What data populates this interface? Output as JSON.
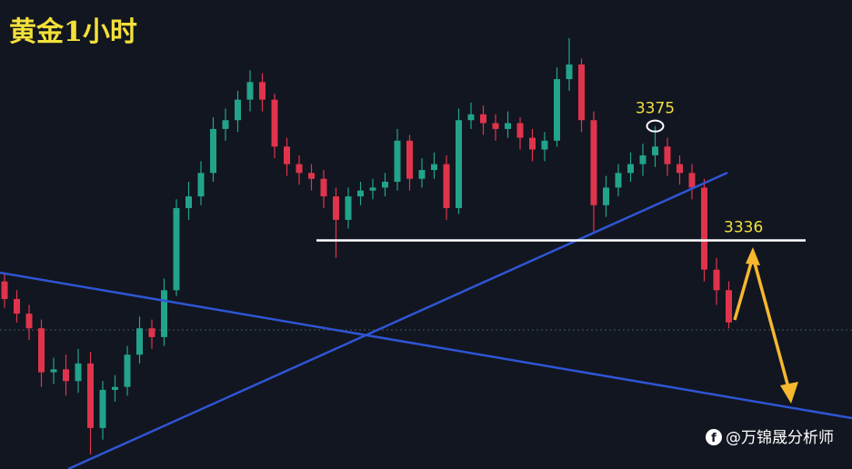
{
  "chart_data": {
    "type": "candlestick",
    "title": "黄金1小时",
    "watermark": "@万锦晟分析师",
    "up_color": "#22a38b",
    "down_color": "#e0344c",
    "ylim": [
      3258,
      3418
    ],
    "marked_high": 3375,
    "support": 3336,
    "open": [
      3322,
      3316,
      3311,
      3306,
      3291,
      3292,
      3288,
      3294,
      3272,
      3285,
      3286,
      3297,
      3306,
      3303,
      3319,
      3347,
      3351,
      3359,
      3374,
      3377,
      3384,
      3390,
      3384,
      3368,
      3362,
      3359,
      3357,
      3351,
      3343,
      3351,
      3353,
      3354,
      3356,
      3370,
      3357,
      3360,
      3362,
      3347,
      3377,
      3379,
      3376,
      3374,
      3376,
      3371,
      3367,
      3370,
      3391,
      3396,
      3377,
      3348,
      3354,
      3359,
      3362,
      3365,
      3368,
      3362,
      3359,
      3354,
      3326,
      3319
    ],
    "high": [
      3325,
      3319,
      3314,
      3309,
      3296,
      3297,
      3299,
      3298,
      3288,
      3290,
      3300,
      3310,
      3309,
      3323,
      3350,
      3356,
      3363,
      3378,
      3381,
      3387,
      3394,
      3393,
      3386,
      3371,
      3365,
      3362,
      3360,
      3354,
      3354,
      3356,
      3357,
      3359,
      3374,
      3372,
      3364,
      3366,
      3365,
      3381,
      3383,
      3382,
      3379,
      3380,
      3378,
      3374,
      3373,
      3395,
      3405,
      3398,
      3380,
      3358,
      3362,
      3366,
      3369,
      3375,
      3371,
      3365,
      3362,
      3357,
      3330,
      3322
    ],
    "low": [
      3313,
      3308,
      3302,
      3286,
      3287,
      3283,
      3284,
      3263,
      3268,
      3281,
      3283,
      3294,
      3299,
      3300,
      3317,
      3343,
      3348,
      3356,
      3370,
      3373,
      3380,
      3380,
      3364,
      3358,
      3355,
      3353,
      3347,
      3330,
      3340,
      3348,
      3350,
      3351,
      3353,
      3353,
      3354,
      3357,
      3343,
      3345,
      3374,
      3372,
      3370,
      3371,
      3367,
      3363,
      3363,
      3368,
      3387,
      3373,
      3339,
      3344,
      3351,
      3356,
      3358,
      3361,
      3358,
      3355,
      3350,
      3322,
      3314,
      3306
    ],
    "close": [
      3316,
      3311,
      3306,
      3291,
      3292,
      3288,
      3294,
      3272,
      3285,
      3286,
      3297,
      3306,
      3303,
      3319,
      3347,
      3351,
      3359,
      3374,
      3377,
      3384,
      3390,
      3384,
      3368,
      3362,
      3359,
      3357,
      3351,
      3343,
      3351,
      3353,
      3354,
      3356,
      3370,
      3357,
      3360,
      3362,
      3347,
      3377,
      3379,
      3376,
      3374,
      3376,
      3371,
      3367,
      3370,
      3391,
      3396,
      3377,
      3348,
      3354,
      3359,
      3362,
      3365,
      3368,
      3362,
      3359,
      3354,
      3326,
      3319,
      3308
    ]
  }
}
